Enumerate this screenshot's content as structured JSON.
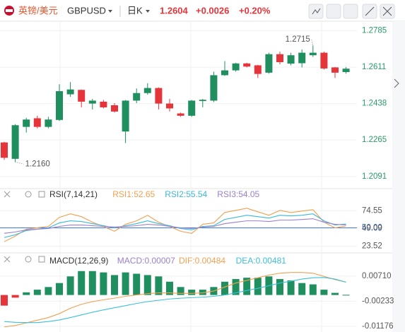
{
  "header": {
    "name": "英镑/美元",
    "symbol": "GBPUSD",
    "period": "日K",
    "price": "1.2604",
    "change": "+0.0026",
    "change_pct": "+0.20%"
  },
  "chart_data": [
    {
      "type": "candlestick",
      "up_color": "#1f8f5f",
      "down_color": "#e5343a",
      "open": [
        1.2253,
        1.2175,
        1.2327,
        1.2368,
        1.2327,
        1.236,
        1.2482,
        1.2503,
        1.2438,
        1.2447,
        1.243,
        1.2305,
        1.2452,
        1.2488,
        1.2512,
        1.2438,
        1.2391,
        1.238,
        1.245,
        1.2452,
        1.2573,
        1.2596,
        1.2629,
        1.262,
        1.2585,
        1.2673,
        1.2628,
        1.263,
        1.2668,
        1.268,
        1.261,
        1.2588
      ],
      "high": [
        1.2256,
        1.234,
        1.237,
        1.238,
        1.2375,
        1.253,
        1.254,
        1.2505,
        1.246,
        1.2455,
        1.244,
        1.2455,
        1.251,
        1.2535,
        1.2515,
        1.246,
        1.2395,
        1.2455,
        1.246,
        1.259,
        1.264,
        1.2632,
        1.2632,
        1.2622,
        1.268,
        1.2685,
        1.268,
        1.2695,
        1.2715,
        1.2685,
        1.2612,
        1.2612
      ],
      "low": [
        1.217,
        1.216,
        1.23,
        1.232,
        1.232,
        1.2355,
        1.247,
        1.242,
        1.241,
        1.2415,
        1.2395,
        1.225,
        1.244,
        1.248,
        1.241,
        1.24,
        1.2375,
        1.2375,
        1.242,
        1.2445,
        1.257,
        1.259,
        1.261,
        1.256,
        1.258,
        1.2625,
        1.262,
        1.261,
        1.266,
        1.26,
        1.256,
        1.258
      ],
      "close": [
        1.218,
        1.2335,
        1.2362,
        1.2327,
        1.2362,
        1.2497,
        1.2505,
        1.2447,
        1.2452,
        1.242,
        1.24,
        1.2452,
        1.2488,
        1.2512,
        1.2438,
        1.2415,
        1.238,
        1.2452,
        1.2456,
        1.2573,
        1.2596,
        1.2629,
        1.2614,
        1.2579,
        1.2673,
        1.2635,
        1.2668,
        1.268,
        1.268,
        1.2605,
        1.2585,
        1.2604
      ],
      "annotations": [
        "1.2715",
        "1.2160"
      ],
      "ylim": [
        1.204,
        1.283
      ],
      "yticks": [
        1.2785,
        1.2611,
        1.2438,
        1.2265,
        1.2091
      ]
    },
    {
      "type": "line",
      "title": "RSI(7,14,21)",
      "series": [
        {
          "name": "RSI1:52.65",
          "color": "#f0a050",
          "values": [
            30,
            38,
            48,
            50,
            52,
            65,
            70,
            66,
            58,
            52,
            45,
            55,
            60,
            68,
            58,
            52,
            45,
            42,
            55,
            57,
            72,
            75,
            78,
            73,
            68,
            75,
            72,
            74,
            76,
            58,
            50,
            52.65
          ]
        },
        {
          "name": "RSI2:55.54",
          "color": "#3cb8d8",
          "values": [
            36,
            40,
            46,
            48,
            50,
            57,
            60,
            59,
            56,
            53,
            50,
            53,
            56,
            60,
            56,
            53,
            49,
            47,
            52,
            53,
            62,
            65,
            68,
            66,
            64,
            68,
            67,
            68,
            70,
            60,
            54,
            55.54
          ]
        },
        {
          "name": "RSI3:54.05",
          "color": "#9a7fd0",
          "values": [
            42,
            44,
            47,
            48,
            49,
            52,
            54,
            54,
            53,
            52,
            51,
            52,
            53,
            55,
            54,
            52,
            50,
            49,
            51,
            52,
            56,
            58,
            60,
            60,
            59,
            61,
            61,
            62,
            63,
            58,
            55,
            54.05
          ]
        }
      ],
      "ylim": [
        17,
        87
      ],
      "yticks": [
        74.55,
        {
          "value": 50,
          "label": "50.00",
          "color": "#2f6fd6"
        },
        49.09,
        23.52
      ]
    },
    {
      "type": "bar",
      "title": "MACD(12,26,9)",
      "values_name": "MACD:0.00007",
      "color": "#1f8f5f",
      "negative_color": "#e5343a",
      "values": [
        -0.004,
        -0.001,
        0.001,
        0.002,
        0.003,
        0.0045,
        0.007,
        0.009,
        0.009,
        0.0085,
        0.0075,
        0.0085,
        0.008,
        0.0075,
        0.007,
        0.005,
        0.003,
        0.002,
        0.002,
        0.003,
        0.005,
        0.006,
        0.0065,
        0.0065,
        0.007,
        0.006,
        0.0055,
        0.0045,
        0.004,
        0.002,
        0.0008,
        7e-05
      ],
      "series": [
        {
          "name": "DIF:0.00484",
          "color": "#f0a050",
          "values": [
            -0.012,
            -0.0115,
            -0.0105,
            -0.0095,
            -0.0085,
            -0.007,
            -0.005,
            -0.0035,
            -0.0025,
            -0.0018,
            -0.0012,
            -0.0005,
            0,
            0.0005,
            0.0008,
            0.0008,
            0.0006,
            0.0006,
            0.0008,
            0.0015,
            0.003,
            0.0045,
            0.0055,
            0.0065,
            0.0075,
            0.0082,
            0.0085,
            0.0085,
            0.0082,
            0.007,
            0.0058,
            0.00484
          ]
        },
        {
          "name": "DEA:0.00481",
          "color": "#3cc0d8",
          "values": [
            -0.01,
            -0.0103,
            -0.0104,
            -0.0104,
            -0.01,
            -0.0094,
            -0.0085,
            -0.0075,
            -0.0065,
            -0.0056,
            -0.0048,
            -0.004,
            -0.0032,
            -0.0025,
            -0.002,
            -0.0015,
            -0.0012,
            -0.001,
            -0.0008,
            -0.0005,
            0,
            0.0008,
            0.0017,
            0.0025,
            0.0035,
            0.0045,
            0.0052,
            0.006,
            0.0065,
            0.0066,
            0.006,
            0.00481
          ]
        }
      ],
      "ylim": [
        -0.0134,
        0.01
      ],
      "yticks": [
        {
          "value": 0.0071,
          "label": "0.00710"
        },
        -0.00233,
        -0.01176
      ]
    }
  ]
}
